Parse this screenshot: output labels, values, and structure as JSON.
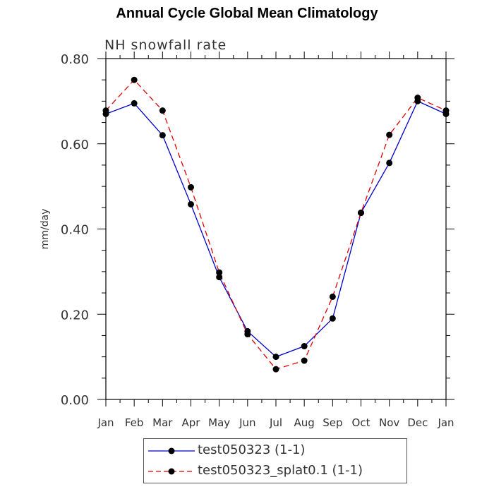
{
  "chart_data": {
    "type": "line",
    "title": "Annual Cycle Global Mean Climatology",
    "subtitle": "NH snowfall rate",
    "xlabel": "",
    "ylabel": "mm/day",
    "categories": [
      "Jan",
      "Feb",
      "Mar",
      "Apr",
      "May",
      "Jun",
      "Jul",
      "Aug",
      "Sep",
      "Oct",
      "Nov",
      "Dec",
      "Jan"
    ],
    "ylim": [
      0,
      0.8
    ],
    "y_ticks": [
      "0.00",
      "0.20",
      "0.40",
      "0.60",
      "0.80"
    ],
    "grid": false,
    "legend_placement": "bottom",
    "series": [
      {
        "name": "test050323 (1-1)",
        "color": "#0000cc",
        "style": "solid",
        "values": [
          0.67,
          0.695,
          0.62,
          0.458,
          0.287,
          0.16,
          0.1,
          0.125,
          0.19,
          0.438,
          0.555,
          0.7,
          0.67
        ]
      },
      {
        "name": "test050323_splat0.1 (1-1)",
        "color": "#dd0000",
        "style": "dashed",
        "values": [
          0.678,
          0.75,
          0.678,
          0.498,
          0.298,
          0.153,
          0.071,
          0.091,
          0.241,
          0.438,
          0.621,
          0.708,
          0.678
        ]
      }
    ]
  }
}
